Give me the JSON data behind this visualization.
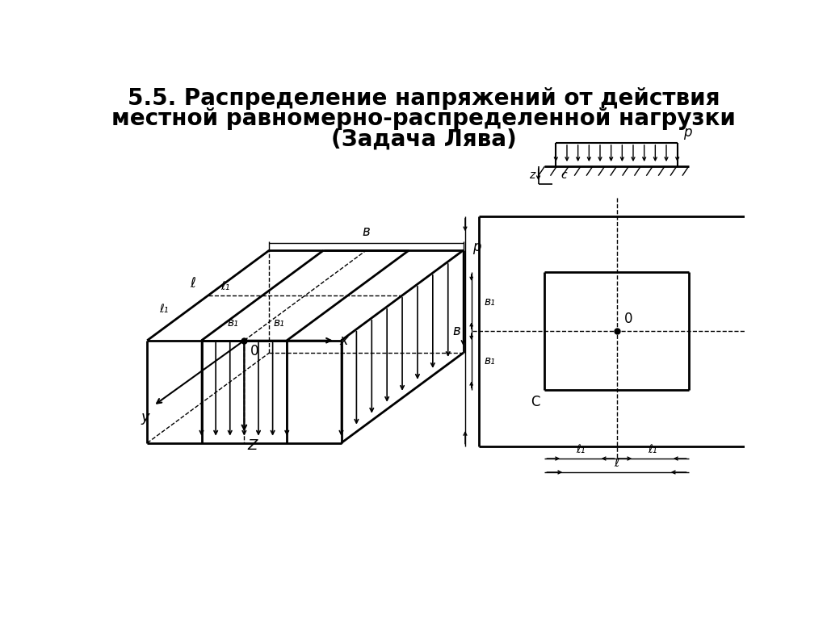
{
  "title_line1": "5.5. Распределение напряжений от действия",
  "title_line2": "местной равномерно-распределенной нагрузки",
  "title_line3": "(Задача Лява)",
  "bg_color": "#ffffff",
  "line_color": "#000000",
  "title_fontsize": 20,
  "label_fontsize": 12
}
